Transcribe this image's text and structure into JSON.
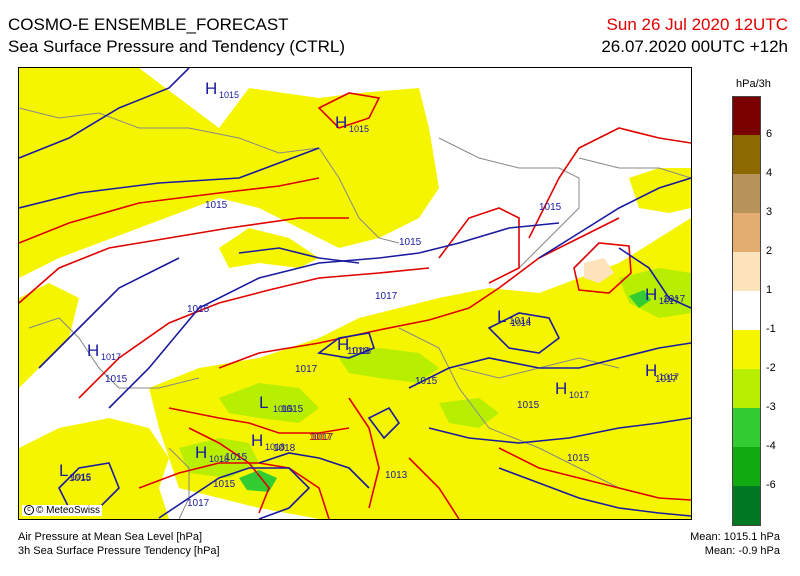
{
  "header": {
    "title_line1": "COSMO-E ENSEMBLE_FORECAST",
    "title_line2": "Sea Surface Pressure and Tendency (CTRL)",
    "valid_time": "Sun 26 Jul 2020 12UTC",
    "run_time": "26.07.2020 00UTC +12h"
  },
  "legend": {
    "unit": "hPa/3h",
    "bins": [
      {
        "label": "6",
        "color": "#7a0000"
      },
      {
        "label": "4",
        "color": "#8c6a00"
      },
      {
        "label": "3",
        "color": "#b8935a"
      },
      {
        "label": "2",
        "color": "#e3ad72"
      },
      {
        "label": "1",
        "color": "#fde3bb"
      },
      {
        "label": "-1",
        "color": "#ffffff"
      },
      {
        "label": "-2",
        "color": "#f5f500"
      },
      {
        "label": "-3",
        "color": "#b8ee00"
      },
      {
        "label": "-4",
        "color": "#33cc33"
      },
      {
        "label": "-6",
        "color": "#11aa11"
      },
      {
        "label": "",
        "color": "#007a22"
      }
    ]
  },
  "map": {
    "pressure_labels": [
      "1015",
      "1015",
      "1015",
      "1015",
      "1015",
      "1017",
      "1014",
      "1015",
      "1018",
      "1017",
      "1015",
      "1017",
      "1015",
      "1017",
      "1015",
      "1018",
      "1017",
      "1015",
      "1015",
      "1013",
      "1015",
      "1017",
      "1017"
    ],
    "centers": [
      "H",
      "H",
      "H",
      "H",
      "L",
      "H",
      "H",
      "L",
      "H",
      "H",
      "H",
      "L"
    ],
    "center_values": [
      "1015",
      "1015",
      "1017",
      "1017",
      "1014",
      "1018",
      "1017",
      "1015",
      "1018",
      "1018",
      "1017",
      "1015"
    ]
  },
  "credit": "© MeteoSwiss",
  "footer": {
    "left_line1": "Air Pressure at Mean Sea Level [hPa]",
    "left_line2": "3h Sea Surface Pressure Tendency [hPa]",
    "right_line1": "Mean: 1015.1 hPa",
    "right_line2": "Mean:  -0.9 hPa"
  }
}
